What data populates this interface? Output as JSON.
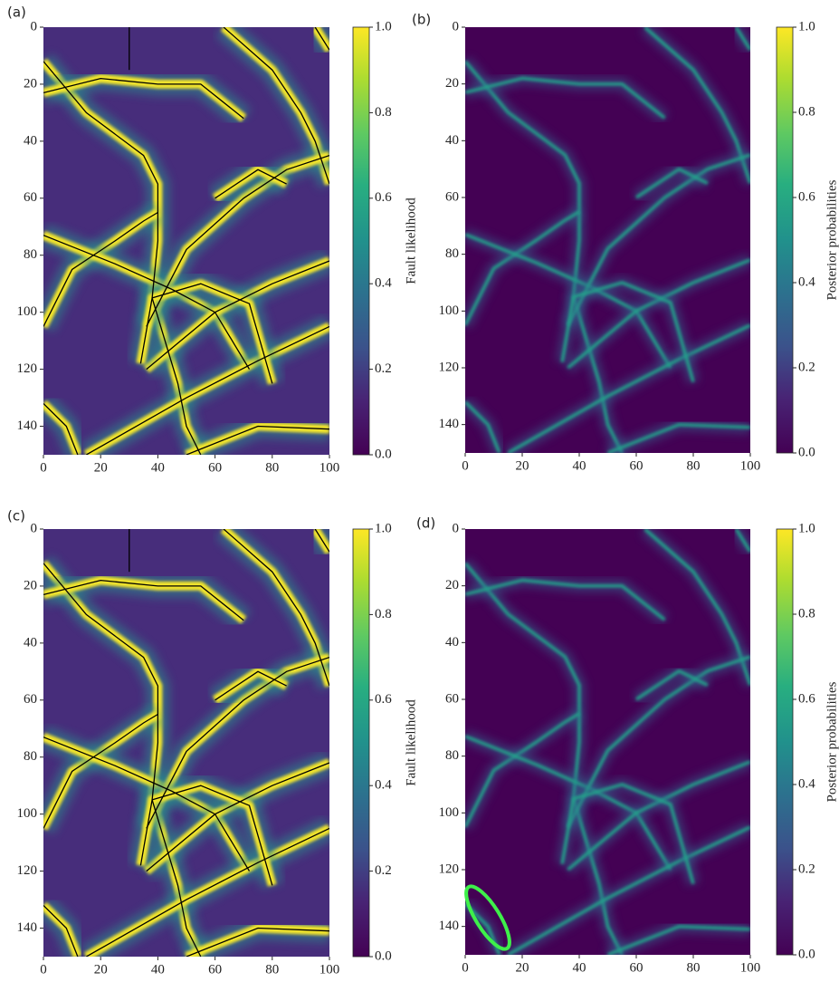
{
  "chart_data": [
    {
      "type": "heatmap",
      "title": "(a)",
      "xlim": [
        0,
        100
      ],
      "ylim": [
        0,
        150
      ],
      "xticks": [
        0,
        20,
        40,
        60,
        80,
        100
      ],
      "yticks": [
        0,
        20,
        40,
        60,
        80,
        100,
        120,
        140
      ],
      "colorbar": {
        "label": "Fault likelihood",
        "colormap": "viridis",
        "lim": [
          0,
          1
        ],
        "ticks": [
          {
            "value": 0,
            "label": "0.0"
          },
          {
            "value": 0.2,
            "label": "0.2"
          },
          {
            "value": 0.4,
            "label": "0.4"
          },
          {
            "value": 0.6,
            "label": "0.6"
          },
          {
            "value": 0.8,
            "label": "0.8"
          },
          {
            "value": 1,
            "label": "1.0"
          }
        ]
      }
    },
    {
      "type": "heatmap",
      "title": "(b)",
      "xlim": [
        0,
        100
      ],
      "ylim": [
        0,
        150
      ],
      "xticks": [
        0,
        20,
        40,
        60,
        80,
        100
      ],
      "yticks": [
        0,
        20,
        40,
        60,
        80,
        100,
        120,
        140
      ],
      "colorbar": {
        "label": "Posterior probabilities",
        "colormap": "viridis",
        "lim": [
          0,
          1
        ],
        "ticks": [
          {
            "value": 0,
            "label": "0.0"
          },
          {
            "value": 0.2,
            "label": "0.2"
          },
          {
            "value": 0.4,
            "label": "0.4"
          },
          {
            "value": 0.6,
            "label": "0.6"
          },
          {
            "value": 0.8,
            "label": "0.8"
          },
          {
            "value": 1,
            "label": "1.0"
          }
        ]
      }
    },
    {
      "type": "heatmap",
      "title": "(c)",
      "xlim": [
        0,
        100
      ],
      "ylim": [
        0,
        150
      ],
      "xticks": [
        0,
        20,
        40,
        60,
        80,
        100
      ],
      "yticks": [
        0,
        20,
        40,
        60,
        80,
        100,
        120,
        140
      ],
      "colorbar": {
        "label": "Fault likelihood",
        "colormap": "viridis",
        "lim": [
          0,
          1
        ],
        "ticks": [
          {
            "value": 0,
            "label": "0.0"
          },
          {
            "value": 0.2,
            "label": "0.2"
          },
          {
            "value": 0.4,
            "label": "0.4"
          },
          {
            "value": 0.6,
            "label": "0.6"
          },
          {
            "value": 0.8,
            "label": "0.8"
          },
          {
            "value": 1,
            "label": "1.0"
          }
        ]
      }
    },
    {
      "type": "heatmap",
      "title": "(d)",
      "xlim": [
        0,
        100
      ],
      "ylim": [
        0,
        150
      ],
      "xticks": [
        0,
        20,
        40,
        60,
        80,
        100
      ],
      "yticks": [
        0,
        20,
        40,
        60,
        80,
        100,
        120,
        140
      ],
      "colorbar": {
        "label": "Posterior probabilities",
        "colormap": "viridis",
        "lim": [
          0,
          1
        ],
        "ticks": [
          {
            "value": 0,
            "label": "0.0"
          },
          {
            "value": 0.2,
            "label": "0.2"
          },
          {
            "value": 0.4,
            "label": "0.4"
          },
          {
            "value": 0.6,
            "label": "0.6"
          },
          {
            "value": 0.8,
            "label": "0.8"
          },
          {
            "value": 1,
            "label": "1.0"
          }
        ]
      }
    }
  ]
}
